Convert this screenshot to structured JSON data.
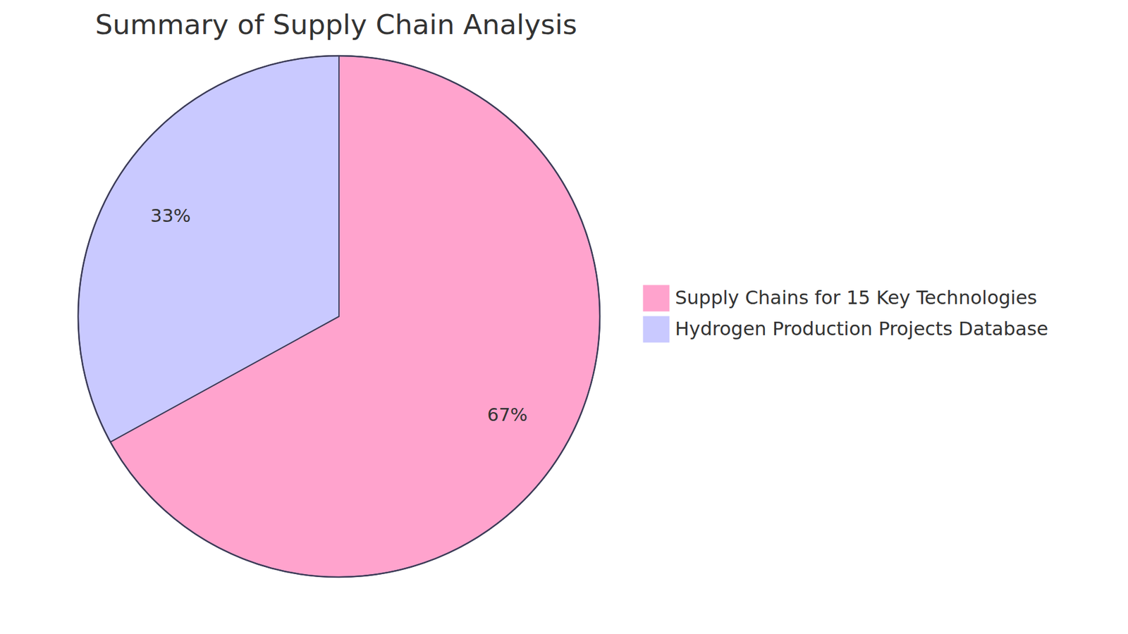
{
  "chart_data": {
    "type": "pie",
    "title": "Summary of Supply Chain Analysis",
    "categories": [
      "Supply Chains for 15 Key Technologies",
      "Hydrogen Production Projects Database"
    ],
    "values": [
      67,
      33
    ],
    "value_labels": [
      "67%",
      "33%"
    ],
    "colors": [
      "#ffa3cd",
      "#c9c9ff"
    ],
    "data_labels": true,
    "legend": "right"
  }
}
